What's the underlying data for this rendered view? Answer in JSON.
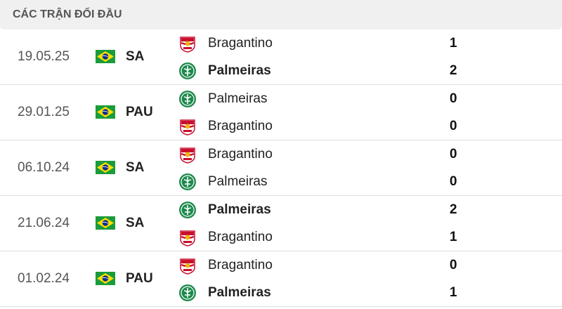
{
  "header": {
    "title": "CÁC TRẬN ĐỐI ĐẦU"
  },
  "matches": [
    {
      "date": "19.05.25",
      "competition": "SA",
      "flag": "brazil-flag",
      "home": {
        "name": "Bragantino",
        "score": "1",
        "logo": "bragantino",
        "winner": false
      },
      "away": {
        "name": "Palmeiras",
        "score": "2",
        "logo": "palmeiras",
        "winner": true
      }
    },
    {
      "date": "29.01.25",
      "competition": "PAU",
      "flag": "brazil-flag",
      "home": {
        "name": "Palmeiras",
        "score": "0",
        "logo": "palmeiras",
        "winner": false
      },
      "away": {
        "name": "Bragantino",
        "score": "0",
        "logo": "bragantino",
        "winner": false
      }
    },
    {
      "date": "06.10.24",
      "competition": "SA",
      "flag": "brazil-flag",
      "home": {
        "name": "Bragantino",
        "score": "0",
        "logo": "bragantino",
        "winner": false
      },
      "away": {
        "name": "Palmeiras",
        "score": "0",
        "logo": "palmeiras",
        "winner": false
      }
    },
    {
      "date": "21.06.24",
      "competition": "SA",
      "flag": "brazil-flag",
      "home": {
        "name": "Palmeiras",
        "score": "2",
        "logo": "palmeiras",
        "winner": true
      },
      "away": {
        "name": "Bragantino",
        "score": "1",
        "logo": "bragantino",
        "winner": false
      }
    },
    {
      "date": "01.02.24",
      "competition": "PAU",
      "flag": "brazil-flag",
      "home": {
        "name": "Bragantino",
        "score": "0",
        "logo": "bragantino",
        "winner": false
      },
      "away": {
        "name": "Palmeiras",
        "score": "1",
        "logo": "palmeiras",
        "winner": true
      }
    }
  ]
}
